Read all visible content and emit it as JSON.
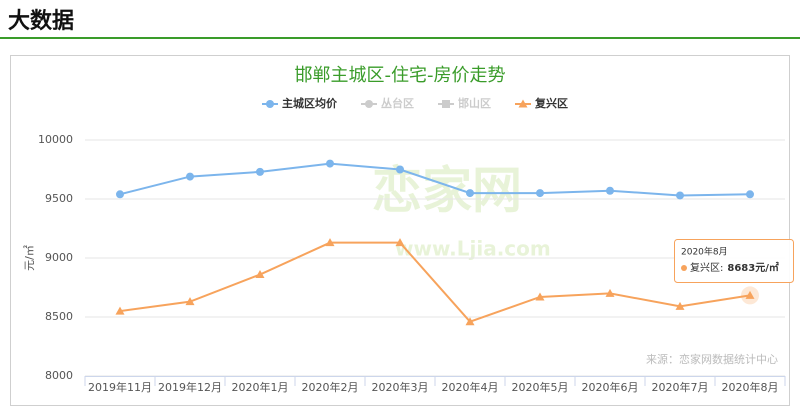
{
  "header": {
    "title": "大数据"
  },
  "chart_data": {
    "type": "line",
    "title": "邯郸主城区-住宅-房价走势",
    "y_label": "元/㎡",
    "categories": [
      "2019年11月",
      "2019年12月",
      "2020年1月",
      "2020年2月",
      "2020年3月",
      "2020年4月",
      "2020年5月",
      "2020年6月",
      "2020年7月",
      "2020年8月"
    ],
    "series": [
      {
        "name": "主城区均价",
        "color": "#7cb5ec",
        "marker": "circle",
        "visible": true,
        "values": [
          9540,
          9690,
          9730,
          9800,
          9750,
          9550,
          9550,
          9570,
          9530,
          9540
        ]
      },
      {
        "name": "复兴区",
        "color": "#f7a35c",
        "marker": "triangle",
        "visible": true,
        "values": [
          8550,
          8630,
          8860,
          9130,
          9130,
          8460,
          8670,
          8700,
          8590,
          8683
        ],
        "value_labels": [
          null,
          null,
          null,
          null,
          null,
          null,
          null,
          null,
          null,
          "8683元/㎡"
        ]
      },
      {
        "name": "丛台区",
        "color": "#cccccc",
        "marker": "circle",
        "visible": false,
        "values": [
          null,
          null,
          null,
          null,
          null,
          null,
          null,
          null,
          null,
          null
        ]
      },
      {
        "name": "邯山区",
        "color": "#cccccc",
        "marker": "square",
        "visible": false,
        "values": [
          null,
          null,
          null,
          null,
          null,
          null,
          null,
          null,
          null,
          null
        ]
      }
    ],
    "legend_order": [
      0,
      2,
      3,
      1
    ],
    "ylim": [
      8000,
      10000
    ],
    "yticks": [
      8000,
      8500,
      9000,
      9500,
      10000
    ],
    "grid": true,
    "tooltip": {
      "label": "复兴区:"
    },
    "watermark": "恋家网",
    "watermark_url": "www.Ljia.com",
    "source": "来源：恋家网数据统计中心"
  }
}
